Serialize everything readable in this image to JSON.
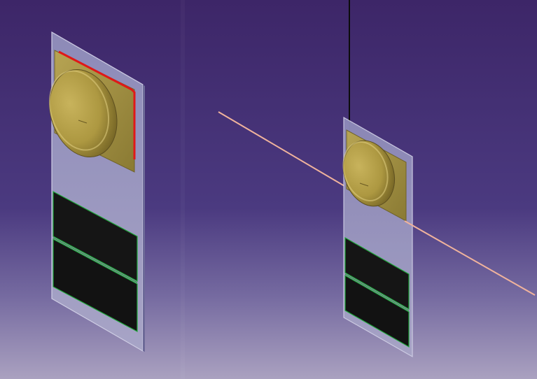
{
  "scene": {
    "type": "cad-3d-viewport",
    "views": [
      {
        "name": "left-view",
        "description_hidden": true,
        "model": "panel-with-disc-and-solar-cells",
        "highlighted_edge": true
      },
      {
        "name": "right-view",
        "model": "panel-with-disc-and-solar-cells",
        "has_vertical_wire": true,
        "has_diagonal_ray": true
      }
    ],
    "colors": {
      "background_top": "#3e2768",
      "background_bottom": "#a89fbe",
      "panel": "#9c9ac0",
      "panel_edge": "#c9c8e0",
      "disc": "#b9a450",
      "disc_shadow": "#7a6a2a",
      "disc_highlight": "#e4d38a",
      "plate": "#a89545",
      "cell": "#141414",
      "cell_border": "#1fa83a",
      "highlight_edge": "#e01818",
      "ray": "#f1b49a",
      "wire": "#101010"
    }
  }
}
